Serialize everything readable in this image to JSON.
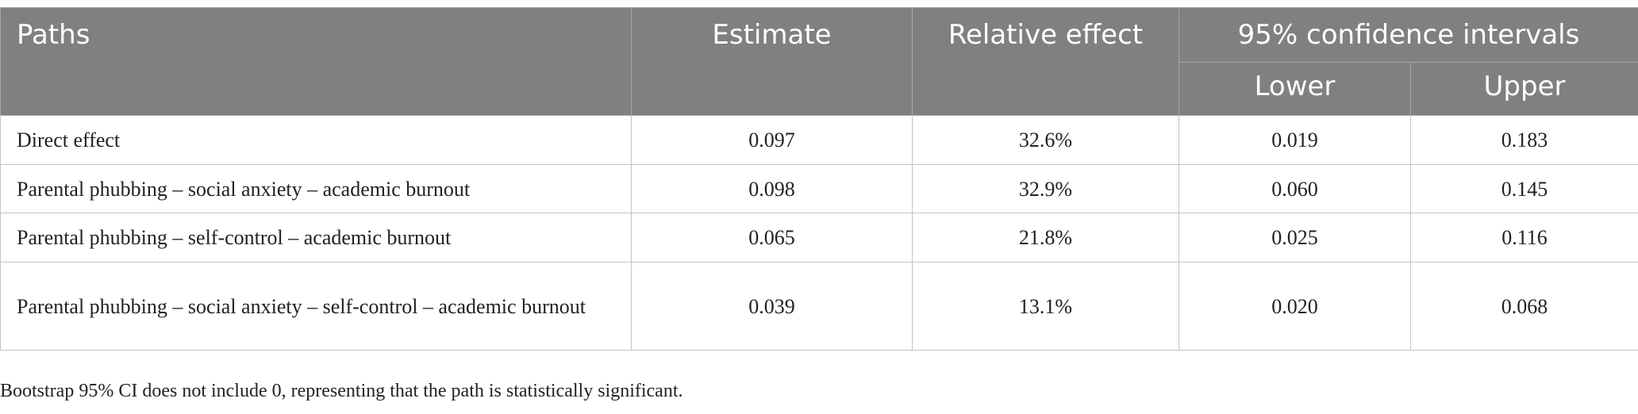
{
  "table": {
    "header": {
      "paths": "Paths",
      "estimate": "Estimate",
      "relative": "Relative effect",
      "ci": "95% confidence intervals",
      "lower": "Lower",
      "upper": "Upper"
    },
    "rows": [
      [
        "Direct effect",
        "0.097",
        "32.6%",
        "0.019",
        "0.183"
      ],
      [
        "Parental phubbing – social anxiety – academic burnout",
        "0.098",
        "32.9%",
        "0.060",
        "0.145"
      ],
      [
        "Parental phubbing – self-control – academic burnout",
        "0.065",
        "21.8%",
        "0.025",
        "0.116"
      ],
      [
        "Parental phubbing – social anxiety – self-control – academic burnout",
        "0.039",
        "13.1%",
        "0.020",
        "0.068"
      ]
    ]
  },
  "footnote": "Bootstrap 95% CI does not include 0, representing that the path is statistically significant."
}
